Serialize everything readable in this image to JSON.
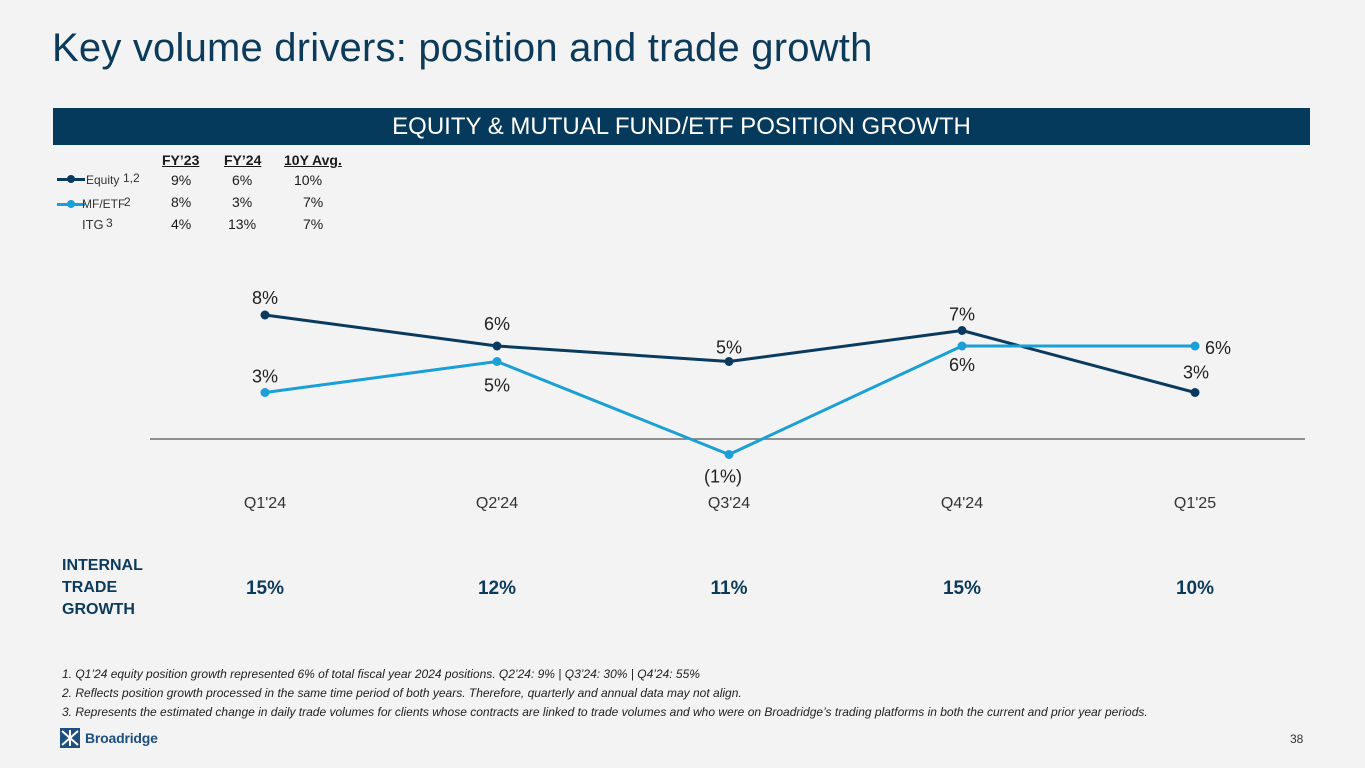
{
  "title": "Key volume drivers: position and trade growth",
  "banner": "EQUITY & MUTUAL FUND/ETF POSITION GROWTH",
  "legend_table": {
    "headers": [
      "FY’23",
      "FY’24",
      "10Y Avg."
    ],
    "rows": [
      {
        "name": "Equity",
        "sup": "1,2",
        "values": [
          "9%",
          "6%",
          "10%"
        ],
        "color": "#0a3a5e"
      },
      {
        "name": "MF/ETF",
        "sup": "2",
        "values": [
          "8%",
          "3%",
          "7%"
        ],
        "color": "#1a9fd6"
      },
      {
        "name": "ITG",
        "sup": "3",
        "values": [
          "4%",
          "13%",
          "7%"
        ]
      }
    ]
  },
  "chart_data": {
    "type": "line",
    "categories": [
      "Q1'24",
      "Q2'24",
      "Q3'24",
      "Q4'24",
      "Q1'25"
    ],
    "series": [
      {
        "name": "Equity",
        "values": [
          8,
          6,
          5,
          7,
          3
        ],
        "labels": [
          "8%",
          "6%",
          "5%",
          "7%",
          "3%"
        ],
        "color": "#0a3a5e"
      },
      {
        "name": "MF/ETF",
        "values": [
          3,
          5,
          -1,
          6,
          6
        ],
        "labels": [
          "3%",
          "5%",
          "(1%)",
          "6%",
          "6%"
        ],
        "color": "#1a9fd6"
      }
    ],
    "ylim": [
      -1.5,
      9
    ],
    "zero_line": true,
    "grid": false
  },
  "internal_trade_growth": {
    "label": "INTERNAL TRADE GROWTH",
    "label_lines": [
      "INTERNAL",
      "TRADE",
      "GROWTH"
    ],
    "values": [
      "15%",
      "12%",
      "11%",
      "15%",
      "10%"
    ]
  },
  "footnotes": [
    "1. Q1’24 equity position growth represented 6% of total fiscal year 2024 positions. Q2’24: 9% | Q3’24: 30% | Q4’24: 55%",
    "2. Reflects position growth processed in the same time period of both years. Therefore, quarterly and annual data may not align.",
    "3. Represents the estimated change in daily trade volumes for clients whose contracts are linked to trade volumes and who were on Broadridge’s trading platforms in both the current and prior year periods."
  ],
  "logo_text": "Broadridge",
  "page_number": "38",
  "colors": {
    "navy": "#063a5c",
    "equity": "#0a3a5e",
    "mfetf": "#1a9fd6"
  }
}
